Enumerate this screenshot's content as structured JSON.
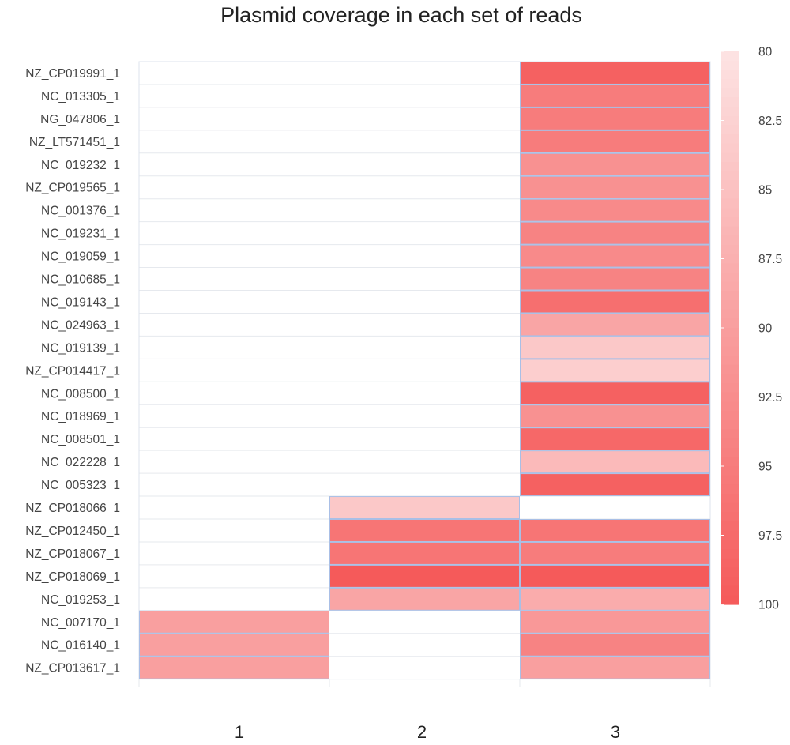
{
  "chart_data": {
    "type": "heatmap",
    "title": "Plasmid coverage in each set of reads",
    "xlabel": "",
    "ylabel": "",
    "x_categories": [
      "1",
      "2",
      "3"
    ],
    "y_categories": [
      "NZ_CP019991_1",
      "NC_013305_1",
      "NG_047806_1",
      "NZ_LT571451_1",
      "NC_019232_1",
      "NZ_CP019565_1",
      "NC_001376_1",
      "NC_019231_1",
      "NC_019059_1",
      "NC_010685_1",
      "NC_019143_1",
      "NC_024963_1",
      "NC_019139_1",
      "NZ_CP014417_1",
      "NC_008500_1",
      "NC_018969_1",
      "NC_008501_1",
      "NC_022228_1",
      "NC_005323_1",
      "NZ_CP018066_1",
      "NZ_CP012450_1",
      "NZ_CP018067_1",
      "NZ_CP018069_1",
      "NC_019253_1",
      "NC_007170_1",
      "NC_016140_1",
      "NZ_CP013617_1"
    ],
    "values": [
      [
        null,
        null,
        99
      ],
      [
        null,
        null,
        95
      ],
      [
        null,
        null,
        95
      ],
      [
        null,
        null,
        95
      ],
      [
        null,
        null,
        92
      ],
      [
        null,
        null,
        92
      ],
      [
        null,
        null,
        93
      ],
      [
        null,
        null,
        94
      ],
      [
        null,
        null,
        93
      ],
      [
        null,
        null,
        94
      ],
      [
        null,
        null,
        97
      ],
      [
        null,
        null,
        89
      ],
      [
        null,
        null,
        84
      ],
      [
        null,
        null,
        83
      ],
      [
        null,
        null,
        99
      ],
      [
        null,
        null,
        92
      ],
      [
        null,
        null,
        98
      ],
      [
        null,
        null,
        86
      ],
      [
        null,
        null,
        99
      ],
      [
        null,
        84,
        null
      ],
      [
        null,
        96,
        96
      ],
      [
        null,
        96,
        95
      ],
      [
        null,
        100,
        100
      ],
      [
        null,
        89,
        88
      ],
      [
        90,
        null,
        91
      ],
      [
        90,
        null,
        94
      ],
      [
        90,
        null,
        90
      ]
    ],
    "color_scale": {
      "min": 80,
      "max": 100,
      "low_color": "#fde3e3",
      "high_color": "#f55a5a",
      "ticks": [
        "80",
        "82.5",
        "85",
        "87.5",
        "90",
        "92.5",
        "95",
        "97.5",
        "100"
      ],
      "position": "right"
    },
    "grid": true
  }
}
